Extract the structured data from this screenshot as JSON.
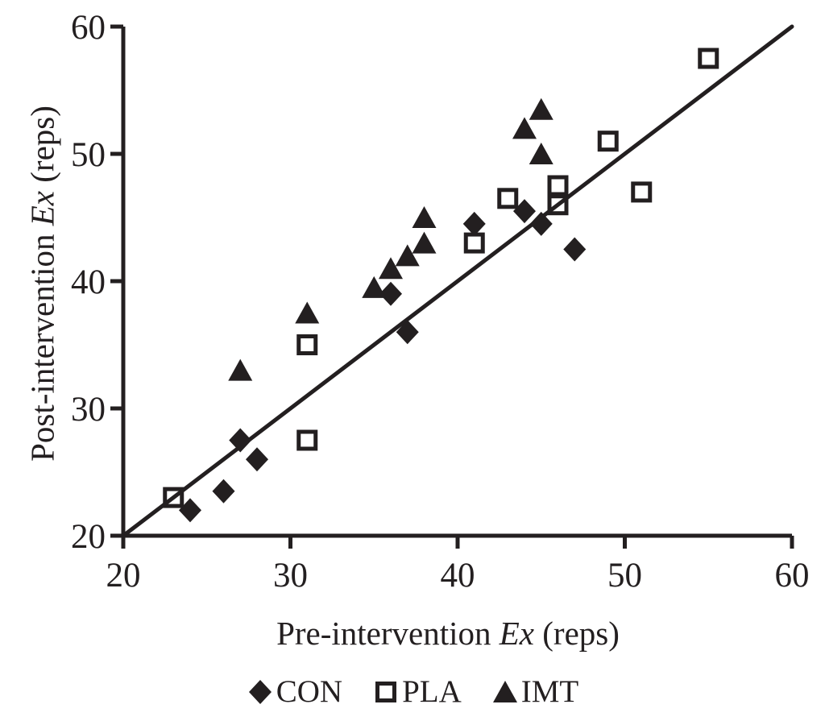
{
  "chart_data": {
    "type": "scatter",
    "title": "",
    "xlabel_parts": [
      {
        "text": "Pre-intervention ",
        "italic": false
      },
      {
        "text": "Ex",
        "italic": true
      },
      {
        "text": " (reps)",
        "italic": false
      }
    ],
    "ylabel_parts": [
      {
        "text": "Post-intervention ",
        "italic": false
      },
      {
        "text": "Ex",
        "italic": true
      },
      {
        "text": " (reps)",
        "italic": false
      }
    ],
    "xlim": [
      20,
      60
    ],
    "ylim": [
      20,
      60
    ],
    "xticks": [
      20,
      30,
      40,
      50,
      60
    ],
    "yticks": [
      20,
      30,
      40,
      50,
      60
    ],
    "grid": false,
    "axis_color": "#231f20",
    "identity_line": {
      "from": [
        20,
        20
      ],
      "to": [
        60,
        60
      ]
    },
    "series": [
      {
        "name": "CON",
        "marker": "diamond",
        "points": [
          [
            24,
            22
          ],
          [
            26,
            23.5
          ],
          [
            27,
            27.5
          ],
          [
            28,
            26
          ],
          [
            36,
            39
          ],
          [
            37,
            36
          ],
          [
            41,
            44.5
          ],
          [
            44,
            45.5
          ],
          [
            45,
            44.5
          ],
          [
            47,
            42.5
          ]
        ]
      },
      {
        "name": "PLA",
        "marker": "square-open",
        "points": [
          [
            23,
            23
          ],
          [
            31,
            27.5
          ],
          [
            31,
            35
          ],
          [
            41,
            43
          ],
          [
            43,
            46.5
          ],
          [
            46,
            46
          ],
          [
            46,
            47.5
          ],
          [
            49,
            51
          ],
          [
            51,
            47
          ],
          [
            55,
            57.5
          ]
        ]
      },
      {
        "name": "IMT",
        "marker": "triangle",
        "points": [
          [
            27,
            33
          ],
          [
            31,
            37.5
          ],
          [
            35,
            39.5
          ],
          [
            36,
            41
          ],
          [
            37,
            42
          ],
          [
            38,
            43
          ],
          [
            38,
            45
          ],
          [
            44,
            52
          ],
          [
            45,
            50
          ],
          [
            45,
            53.5
          ]
        ]
      }
    ],
    "legend": {
      "position": "bottom-center",
      "items": [
        {
          "label": "CON",
          "marker": "diamond"
        },
        {
          "label": "PLA",
          "marker": "square-open"
        },
        {
          "label": "IMT",
          "marker": "triangle"
        }
      ]
    }
  }
}
